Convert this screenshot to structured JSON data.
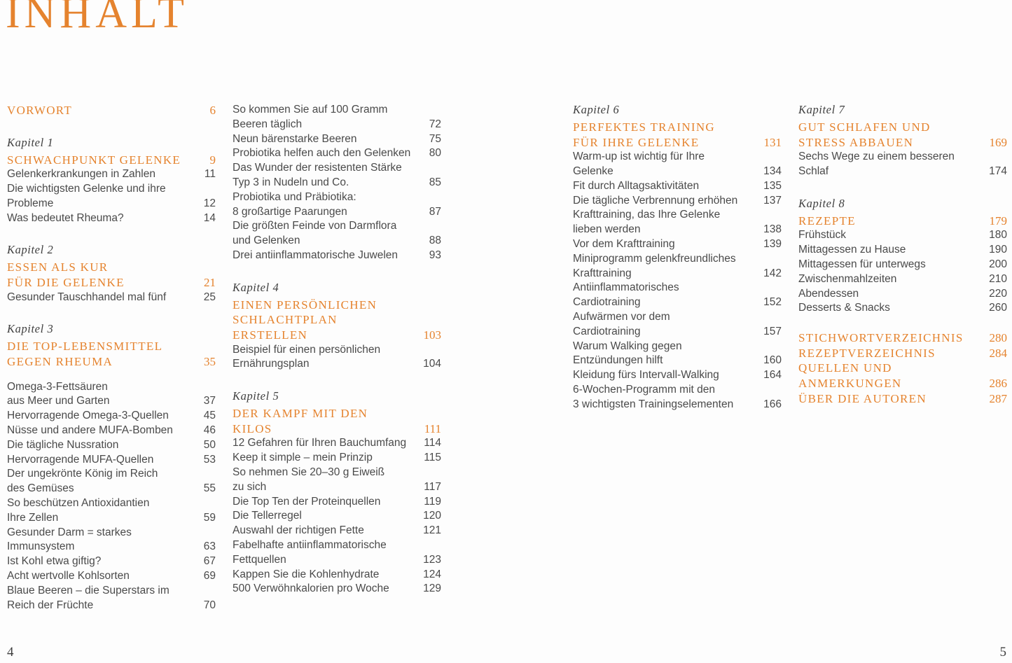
{
  "page": {
    "title": "INHALT",
    "left_folio": "4",
    "right_folio": "5",
    "accent_color": "#e5832e",
    "body_text_color": "#4a4a4a"
  },
  "columns": [
    {
      "blocks": [
        {
          "style": "chapter",
          "text": "VORWORT",
          "page": "6"
        },
        {
          "style": "kapitel",
          "text": "Kapitel 1"
        },
        {
          "style": "chapter",
          "text": "SCHWACHPUNKT GELENKE",
          "page": "9"
        },
        {
          "style": "entry",
          "text": "Gelenkerkrankungen in Zahlen",
          "page": "11"
        },
        {
          "style": "entry",
          "text": "Die wichtigsten Gelenke und ihre"
        },
        {
          "style": "entry",
          "text": "Probleme",
          "page": "12"
        },
        {
          "style": "entry",
          "text": "Was bedeutet Rheuma?",
          "page": "14"
        },
        {
          "style": "kapitel",
          "text": "Kapitel 2"
        },
        {
          "style": "chapter",
          "text": "ESSEN ALS KUR"
        },
        {
          "style": "chapter",
          "text": "FÜR DIE GELENKE",
          "page": "21"
        },
        {
          "style": "entry",
          "text": "Gesunder Tauschhandel mal fünf",
          "page": "25"
        },
        {
          "style": "kapitel",
          "text": "Kapitel 3"
        },
        {
          "style": "chapter",
          "text": "DIE TOP-LEBENSMITTEL"
        },
        {
          "style": "chapter",
          "text": "GEGEN RHEUMA",
          "page": "35"
        },
        {
          "style": "entry",
          "gap": "s",
          "text": "Omega-3-Fettsäuren"
        },
        {
          "style": "entry",
          "text": "aus Meer und Garten",
          "page": "37"
        },
        {
          "style": "entry",
          "text": "Hervorragende Omega-3-Quellen",
          "page": "45"
        },
        {
          "style": "entry",
          "text": "Nüsse und andere MUFA-Bomben",
          "page": "46"
        },
        {
          "style": "entry",
          "text": "Die tägliche Nussration",
          "page": "50"
        },
        {
          "style": "entry",
          "text": "Hervorragende MUFA-Quellen",
          "page": "53"
        },
        {
          "style": "entry",
          "text": "Der ungekrönte König im Reich"
        },
        {
          "style": "entry",
          "text": "des Gemüses",
          "page": "55"
        },
        {
          "style": "entry",
          "text": "So beschützen Antioxidantien"
        },
        {
          "style": "entry",
          "text": "Ihre Zellen",
          "page": "59"
        },
        {
          "style": "entry",
          "text": "Gesunder Darm = starkes"
        },
        {
          "style": "entry",
          "text": "Immunsystem",
          "page": "63"
        },
        {
          "style": "entry",
          "text": "Ist Kohl etwa giftig?",
          "page": "67"
        },
        {
          "style": "entry",
          "text": "Acht wertvolle Kohlsorten",
          "page": "69"
        },
        {
          "style": "entry",
          "text": "Blaue Beeren – die Superstars im"
        },
        {
          "style": "entry",
          "text": "Reich der Früchte",
          "page": "70"
        }
      ]
    },
    {
      "blocks": [
        {
          "style": "entry",
          "text": "So kommen Sie auf 100 Gramm"
        },
        {
          "style": "entry",
          "text": "Beeren täglich",
          "page": "72"
        },
        {
          "style": "entry",
          "text": "Neun bärenstarke Beeren",
          "page": "75"
        },
        {
          "style": "entry",
          "text": "Probiotika helfen auch den Gelenken",
          "page": "80"
        },
        {
          "style": "entry",
          "text": "Das Wunder der resistenten Stärke"
        },
        {
          "style": "entry",
          "text": "Typ 3 in Nudeln und Co.",
          "page": "85"
        },
        {
          "style": "entry",
          "text": "Probiotika und Präbiotika:"
        },
        {
          "style": "entry",
          "text": "8 großartige Paarungen",
          "page": "87"
        },
        {
          "style": "entry",
          "text": "Die größten Feinde von Darmflora"
        },
        {
          "style": "entry",
          "text": "und Gelenken",
          "page": "88"
        },
        {
          "style": "entry",
          "text": "Drei antiinflammatorische Juwelen",
          "page": "93"
        },
        {
          "style": "kapitel",
          "text": "Kapitel 4"
        },
        {
          "style": "chapter",
          "text": "EINEN PERSÖNLICHEN"
        },
        {
          "style": "chapter",
          "text": "SCHLACHTPLAN"
        },
        {
          "style": "chapter",
          "text": "ERSTELLEN",
          "page": "103"
        },
        {
          "style": "entry",
          "text": "Beispiel für einen persönlichen"
        },
        {
          "style": "entry",
          "text": "Ernährungsplan",
          "page": "104"
        },
        {
          "style": "kapitel",
          "text": "Kapitel 5"
        },
        {
          "style": "chapter",
          "text": "DER KAMPF MIT DEN"
        },
        {
          "style": "chapter",
          "text": "KILOS",
          "page": "111"
        },
        {
          "style": "entry",
          "text": "12 Gefahren für Ihren Bauchumfang",
          "page": "114"
        },
        {
          "style": "entry",
          "text": "Keep it simple – mein Prinzip",
          "page": "115"
        },
        {
          "style": "entry",
          "text": "So nehmen Sie 20–30 g Eiweiß"
        },
        {
          "style": "entry",
          "text": "zu sich",
          "page": "117"
        },
        {
          "style": "entry",
          "text": "Die Top Ten der Proteinquellen",
          "page": "119"
        },
        {
          "style": "entry",
          "text": "Die Tellerregel",
          "page": "120"
        },
        {
          "style": "entry",
          "text": "Auswahl der richtigen Fette",
          "page": "121"
        },
        {
          "style": "entry",
          "text": "Fabelhafte antiinflammatorische"
        },
        {
          "style": "entry",
          "text": "Fettquellen",
          "page": "123"
        },
        {
          "style": "entry",
          "text": "Kappen Sie die Kohlenhydrate",
          "page": "124"
        },
        {
          "style": "entry",
          "text": "500 Verwöhnkalorien pro Woche",
          "page": "129"
        }
      ]
    },
    {
      "blocks": [
        {
          "style": "kapitel",
          "text": "Kapitel 6"
        },
        {
          "style": "chapter",
          "text": "PERFEKTES TRAINING"
        },
        {
          "style": "chapter",
          "text": "FÜR IHRE GELENKE",
          "page": "131"
        },
        {
          "style": "entry",
          "text": "Warm-up ist wichtig für Ihre"
        },
        {
          "style": "entry",
          "text": "Gelenke",
          "page": "134"
        },
        {
          "style": "entry",
          "text": "Fit durch Alltagsaktivitäten",
          "page": "135"
        },
        {
          "style": "entry",
          "text": "Die tägliche Verbrennung erhöhen",
          "page": "137"
        },
        {
          "style": "entry",
          "text": "Krafttraining, das Ihre Gelenke"
        },
        {
          "style": "entry",
          "text": "lieben werden",
          "page": "138"
        },
        {
          "style": "entry",
          "text": "Vor dem Krafttraining",
          "page": "139"
        },
        {
          "style": "entry",
          "text": "Miniprogramm gelenkfreundliches"
        },
        {
          "style": "entry",
          "text": "Krafttraining",
          "page": "142"
        },
        {
          "style": "entry",
          "text": "Antiinflammatorisches"
        },
        {
          "style": "entry",
          "text": "Cardiotraining",
          "page": "152"
        },
        {
          "style": "entry",
          "text": "Aufwärmen vor dem"
        },
        {
          "style": "entry",
          "text": "Cardiotraining",
          "page": "157"
        },
        {
          "style": "entry",
          "text": "Warum Walking gegen"
        },
        {
          "style": "entry",
          "text": "Entzündungen hilft",
          "page": "160"
        },
        {
          "style": "entry",
          "text": "Kleidung fürs Intervall-Walking",
          "page": "164"
        },
        {
          "style": "entry",
          "text": "6-Wochen-Programm mit den"
        },
        {
          "style": "entry",
          "text": "3 wichtigsten Trainingselementen",
          "page": "166"
        }
      ]
    },
    {
      "blocks": [
        {
          "style": "kapitel",
          "text": "Kapitel 7"
        },
        {
          "style": "chapter",
          "text": "GUT SCHLAFEN UND"
        },
        {
          "style": "chapter",
          "text": "STRESS ABBAUEN",
          "page": "169"
        },
        {
          "style": "entry",
          "text": "Sechs Wege zu einem besseren"
        },
        {
          "style": "entry",
          "text": "Schlaf",
          "page": "174"
        },
        {
          "style": "kapitel",
          "text": "Kapitel 8"
        },
        {
          "style": "chapter",
          "text": "REZEPTE",
          "page": "179"
        },
        {
          "style": "entry",
          "text": "Frühstück",
          "page": "180"
        },
        {
          "style": "entry",
          "text": "Mittagessen zu Hause",
          "page": "190"
        },
        {
          "style": "entry",
          "text": "Mittagessen für unterwegs",
          "page": "200"
        },
        {
          "style": "entry",
          "text": "Zwischenmahlzeiten",
          "page": "210"
        },
        {
          "style": "entry",
          "text": "Abendessen",
          "page": "220"
        },
        {
          "style": "entry",
          "text": "Desserts & Snacks",
          "page": "260"
        },
        {
          "style": "chapter",
          "gap": "l",
          "text": "STICHWORTVERZEICHNIS",
          "page": "280"
        },
        {
          "style": "chapter",
          "text": "REZEPTVERZEICHNIS",
          "page": "284"
        },
        {
          "style": "chapter",
          "text": "QUELLEN UND"
        },
        {
          "style": "chapter",
          "text": "ANMERKUNGEN",
          "page": "286"
        },
        {
          "style": "chapter",
          "text": "ÜBER DIE AUTOREN",
          "page": "287"
        }
      ]
    }
  ]
}
